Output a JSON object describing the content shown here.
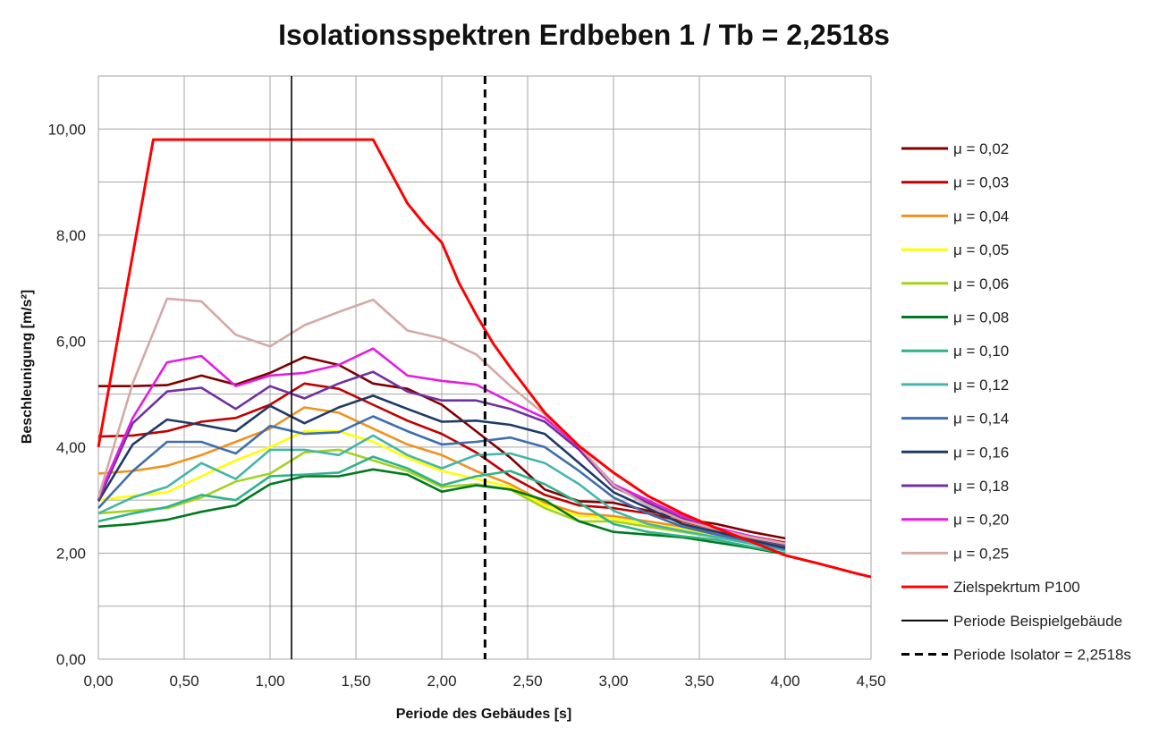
{
  "chart_data": {
    "type": "line",
    "title": "Isolationsspektren Erdbeben 1 / Tb = 2,2518s",
    "xlabel": "Periode des Gebäudes [s]",
    "ylabel": "Beschleunigung [m/s²]",
    "xlim": [
      0,
      4.5
    ],
    "ylim": [
      0,
      11
    ],
    "x_ticks": [
      "0,00",
      "0,50",
      "1,00",
      "1,50",
      "2,00",
      "2,50",
      "3,00",
      "3,50",
      "4,00",
      "4,50"
    ],
    "y_ticks": [
      "0,00",
      "2,00",
      "4,00",
      "6,00",
      "8,00",
      "10,00"
    ],
    "grid": true,
    "legend_position": "right",
    "x": [
      0,
      0.2,
      0.4,
      0.6,
      0.8,
      1.0,
      1.2,
      1.4,
      1.6,
      1.8,
      2.0,
      2.2,
      2.4,
      2.6,
      2.8,
      3.0,
      3.2,
      3.4,
      3.6,
      3.8,
      4.0
    ],
    "series": [
      {
        "name": "μ = 0,02",
        "color": "#7f0000",
        "values": [
          5.15,
          5.15,
          5.17,
          5.35,
          5.18,
          5.4,
          5.7,
          5.55,
          5.2,
          5.1,
          4.8,
          4.3,
          3.8,
          3.2,
          2.98,
          2.95,
          2.8,
          2.65,
          2.55,
          2.4,
          2.28
        ]
      },
      {
        "name": "μ = 0,03",
        "color": "#c00000",
        "values": [
          4.2,
          4.22,
          4.3,
          4.48,
          4.55,
          4.8,
          5.2,
          5.1,
          4.8,
          4.5,
          4.25,
          3.9,
          3.45,
          3.1,
          2.9,
          2.85,
          2.75,
          2.6,
          2.45,
          2.32,
          2.2
        ]
      },
      {
        "name": "μ = 0,04",
        "color": "#f0921e",
        "values": [
          3.5,
          3.55,
          3.65,
          3.85,
          4.1,
          4.35,
          4.75,
          4.65,
          4.35,
          4.05,
          3.85,
          3.55,
          3.3,
          2.95,
          2.75,
          2.7,
          2.6,
          2.5,
          2.4,
          2.28,
          2.15
        ]
      },
      {
        "name": "μ = 0,05",
        "color": "#ffff00",
        "values": [
          3.0,
          3.08,
          3.15,
          3.45,
          3.75,
          4.0,
          4.3,
          4.3,
          4.1,
          3.8,
          3.55,
          3.4,
          3.25,
          2.9,
          2.7,
          2.65,
          2.55,
          2.45,
          2.35,
          2.25,
          2.1
        ]
      },
      {
        "name": "μ = 0,06",
        "color": "#a5d21e",
        "values": [
          2.75,
          2.8,
          2.85,
          3.05,
          3.35,
          3.5,
          3.9,
          3.95,
          3.75,
          3.55,
          3.25,
          3.3,
          3.2,
          2.85,
          2.6,
          2.6,
          2.5,
          2.4,
          2.3,
          2.2,
          2.05
        ]
      },
      {
        "name": "μ = 0,08",
        "color": "#007a1e",
        "values": [
          2.5,
          2.55,
          2.63,
          2.78,
          2.9,
          3.3,
          3.45,
          3.45,
          3.58,
          3.48,
          3.16,
          3.28,
          3.2,
          3.0,
          2.6,
          2.4,
          2.35,
          2.3,
          2.2,
          2.1,
          1.98
        ]
      },
      {
        "name": "μ = 0,10",
        "color": "#2fb38a",
        "values": [
          2.6,
          2.75,
          2.87,
          3.1,
          3.0,
          3.45,
          3.48,
          3.52,
          3.82,
          3.6,
          3.28,
          3.45,
          3.55,
          3.3,
          2.95,
          2.55,
          2.4,
          2.32,
          2.25,
          2.12,
          2.0
        ]
      },
      {
        "name": "μ = 0,12",
        "color": "#45b5aa",
        "values": [
          2.75,
          3.05,
          3.25,
          3.7,
          3.4,
          3.95,
          3.95,
          3.85,
          4.22,
          3.85,
          3.6,
          3.85,
          3.88,
          3.7,
          3.3,
          2.8,
          2.55,
          2.42,
          2.3,
          2.18,
          2.05
        ]
      },
      {
        "name": "μ = 0,14",
        "color": "#3f6eb0",
        "values": [
          2.85,
          3.55,
          4.1,
          4.1,
          3.88,
          4.4,
          4.25,
          4.28,
          4.58,
          4.3,
          4.05,
          4.1,
          4.18,
          4.0,
          3.55,
          3.05,
          2.75,
          2.5,
          2.35,
          2.22,
          2.08
        ]
      },
      {
        "name": "μ = 0,16",
        "color": "#1f3a66",
        "values": [
          2.98,
          4.05,
          4.52,
          4.42,
          4.3,
          4.78,
          4.45,
          4.75,
          4.97,
          4.72,
          4.48,
          4.5,
          4.42,
          4.25,
          3.7,
          3.15,
          2.85,
          2.55,
          2.4,
          2.25,
          2.1
        ]
      },
      {
        "name": "μ = 0,18",
        "color": "#7030a0",
        "values": [
          3.0,
          4.45,
          5.05,
          5.12,
          4.72,
          5.15,
          4.92,
          5.2,
          5.42,
          5.05,
          4.88,
          4.88,
          4.72,
          4.48,
          3.95,
          3.25,
          2.95,
          2.65,
          2.45,
          2.3,
          2.15
        ]
      },
      {
        "name": "μ = 0,20",
        "color": "#e21ee2",
        "values": [
          3.05,
          4.55,
          5.6,
          5.72,
          5.15,
          5.35,
          5.4,
          5.55,
          5.86,
          5.35,
          5.25,
          5.18,
          4.85,
          4.55,
          4.0,
          3.3,
          3.0,
          2.7,
          2.48,
          2.32,
          2.18
        ]
      },
      {
        "name": "μ = 0,25",
        "color": "#d4a9a6",
        "values": [
          3.05,
          5.2,
          6.8,
          6.75,
          6.12,
          5.9,
          6.3,
          6.55,
          6.78,
          6.2,
          6.05,
          5.75,
          5.15,
          4.62,
          4.02,
          3.28,
          2.9,
          2.62,
          2.45,
          2.3,
          2.18
        ]
      }
    ],
    "target_spectrum": {
      "name": "Zielspekrtum P100",
      "color": "#ff0000",
      "x": [
        0,
        0.32,
        1.6,
        1.7,
        1.8,
        1.9,
        2.0,
        2.1,
        2.2,
        2.3,
        2.4,
        2.6,
        2.8,
        3.0,
        3.2,
        3.4,
        3.6,
        3.8,
        4.0,
        4.2,
        4.4,
        4.5
      ],
      "values": [
        4.0,
        9.8,
        9.8,
        9.2,
        8.6,
        8.2,
        7.86,
        7.1,
        6.5,
        5.95,
        5.5,
        4.65,
        4.02,
        3.52,
        3.08,
        2.75,
        2.47,
        2.22,
        1.96,
        1.8,
        1.63,
        1.55
      ]
    },
    "reference_lines": [
      {
        "name": "Periode Beispielgebäude",
        "x": 1.125,
        "style": "solid",
        "color": "#000000"
      },
      {
        "name": "Periode Isolator = 2,2518s",
        "x": 2.2518,
        "style": "dashed",
        "color": "#000000"
      }
    ]
  }
}
